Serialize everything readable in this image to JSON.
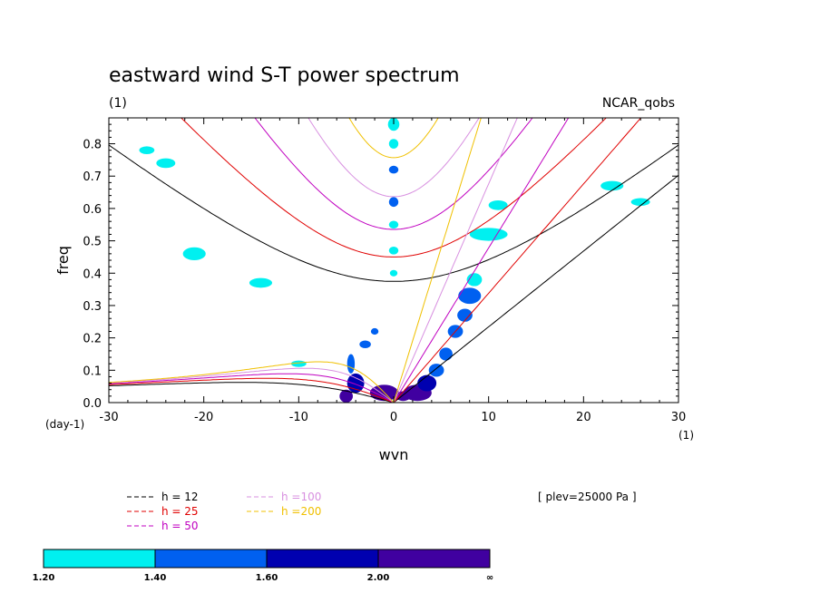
{
  "chart_data": {
    "type": "heatmap",
    "title": "eastward wind S-T power spectrum",
    "subtitle_left": "(1)",
    "subtitle_right": "NCAR_qobs",
    "xlabel": "wvn",
    "ylabel": "freq",
    "x_unit": "(1)",
    "y_unit": "(day-1)",
    "xlim": [
      -30,
      30
    ],
    "ylim": [
      0,
      0.88
    ],
    "x_ticks": [
      -30,
      -20,
      -10,
      0,
      10,
      20,
      30
    ],
    "x_tick_labels": [
      "-30",
      "-20",
      "-10",
      "0",
      "10",
      "20",
      "30"
    ],
    "y_ticks": [
      0,
      0.1,
      0.2,
      0.3,
      0.4,
      0.5,
      0.6,
      0.7,
      0.8
    ],
    "y_tick_labels": [
      "0.0",
      "0.1",
      "0.2",
      "0.3",
      "0.4",
      "0.5",
      "0.6",
      "0.7",
      "0.8"
    ],
    "level_text": "[ plev=25000 Pa ]",
    "legend": [
      {
        "label": "h = 12",
        "color": "#000000"
      },
      {
        "label": "h = 25",
        "color": "#e00000"
      },
      {
        "label": "h = 50",
        "color": "#c000c0"
      },
      {
        "label": "h =100",
        "color": "#d890e0"
      },
      {
        "label": "h =200",
        "color": "#f0c000"
      }
    ],
    "colorbar": {
      "colors": [
        "#00f0f0",
        "#0060f0",
        "#0000b0",
        "#4000a0"
      ],
      "labels": [
        "1.20",
        "1.40",
        "1.60",
        "2.00",
        "∞"
      ]
    },
    "dispersion_curves": [
      {
        "h": 12,
        "color": "#000000",
        "types": [
          "kelvin",
          "er",
          "ig"
        ]
      },
      {
        "h": 25,
        "color": "#e00000",
        "types": [
          "kelvin",
          "er",
          "ig"
        ]
      },
      {
        "h": 50,
        "color": "#c000c0",
        "types": [
          "kelvin",
          "er",
          "ig"
        ]
      },
      {
        "h": 100,
        "color": "#d890e0",
        "types": [
          "kelvin",
          "er",
          "ig"
        ]
      },
      {
        "h": 200,
        "color": "#f0c000",
        "types": [
          "kelvin",
          "er",
          "ig"
        ]
      }
    ],
    "power_regions": [
      {
        "x": 0,
        "y": 0.86,
        "rx": 0.6,
        "ry": 0.02,
        "level": 1
      },
      {
        "x": 0,
        "y": 0.8,
        "rx": 0.5,
        "ry": 0.015,
        "level": 1
      },
      {
        "x": 0,
        "y": 0.72,
        "rx": 0.5,
        "ry": 0.012,
        "level": 2
      },
      {
        "x": 0,
        "y": 0.62,
        "rx": 0.5,
        "ry": 0.015,
        "level": 2
      },
      {
        "x": 0,
        "y": 0.55,
        "rx": 0.5,
        "ry": 0.012,
        "level": 1
      },
      {
        "x": 0,
        "y": 0.47,
        "rx": 0.5,
        "ry": 0.012,
        "level": 1
      },
      {
        "x": 0,
        "y": 0.4,
        "rx": 0.4,
        "ry": 0.01,
        "level": 1
      },
      {
        "x": -3,
        "y": 0.18,
        "rx": 0.6,
        "ry": 0.012,
        "level": 2
      },
      {
        "x": -2,
        "y": 0.22,
        "rx": 0.4,
        "ry": 0.01,
        "level": 2
      },
      {
        "x": -5,
        "y": 0.02,
        "rx": 0.7,
        "ry": 0.02,
        "level": 4
      },
      {
        "x": -4,
        "y": 0.06,
        "rx": 0.9,
        "ry": 0.03,
        "level": 3
      },
      {
        "x": -4.5,
        "y": 0.12,
        "rx": 0.4,
        "ry": 0.03,
        "level": 2
      },
      {
        "x": -1,
        "y": 0.03,
        "rx": 1.5,
        "ry": 0.025,
        "level": 4
      },
      {
        "x": 1,
        "y": 0.02,
        "rx": 0.8,
        "ry": 0.015,
        "level": 4
      },
      {
        "x": 2.5,
        "y": 0.03,
        "rx": 1.5,
        "ry": 0.025,
        "level": 4
      },
      {
        "x": 3.5,
        "y": 0.06,
        "rx": 1.0,
        "ry": 0.025,
        "level": 3
      },
      {
        "x": 4.5,
        "y": 0.1,
        "rx": 0.8,
        "ry": 0.02,
        "level": 2
      },
      {
        "x": 5.5,
        "y": 0.15,
        "rx": 0.7,
        "ry": 0.02,
        "level": 2
      },
      {
        "x": 6.5,
        "y": 0.22,
        "rx": 0.8,
        "ry": 0.02,
        "level": 2
      },
      {
        "x": 7.5,
        "y": 0.27,
        "rx": 0.8,
        "ry": 0.02,
        "level": 2
      },
      {
        "x": 8,
        "y": 0.33,
        "rx": 1.2,
        "ry": 0.025,
        "level": 2
      },
      {
        "x": 8.5,
        "y": 0.38,
        "rx": 0.8,
        "ry": 0.02,
        "level": 1
      },
      {
        "x": 10,
        "y": 0.52,
        "rx": 2.0,
        "ry": 0.02,
        "level": 1
      },
      {
        "x": 11,
        "y": 0.61,
        "rx": 1.0,
        "ry": 0.015,
        "level": 1
      },
      {
        "x": -21,
        "y": 0.46,
        "rx": 1.2,
        "ry": 0.02,
        "level": 1
      },
      {
        "x": -14,
        "y": 0.37,
        "rx": 1.2,
        "ry": 0.015,
        "level": 1
      },
      {
        "x": -24,
        "y": 0.74,
        "rx": 1.0,
        "ry": 0.015,
        "level": 1
      },
      {
        "x": -26,
        "y": 0.78,
        "rx": 0.8,
        "ry": 0.012,
        "level": 1
      },
      {
        "x": 23,
        "y": 0.67,
        "rx": 1.2,
        "ry": 0.015,
        "level": 1
      },
      {
        "x": 26,
        "y": 0.62,
        "rx": 1.0,
        "ry": 0.012,
        "level": 1
      },
      {
        "x": -10,
        "y": 0.12,
        "rx": 0.8,
        "ry": 0.01,
        "level": 1
      }
    ]
  }
}
